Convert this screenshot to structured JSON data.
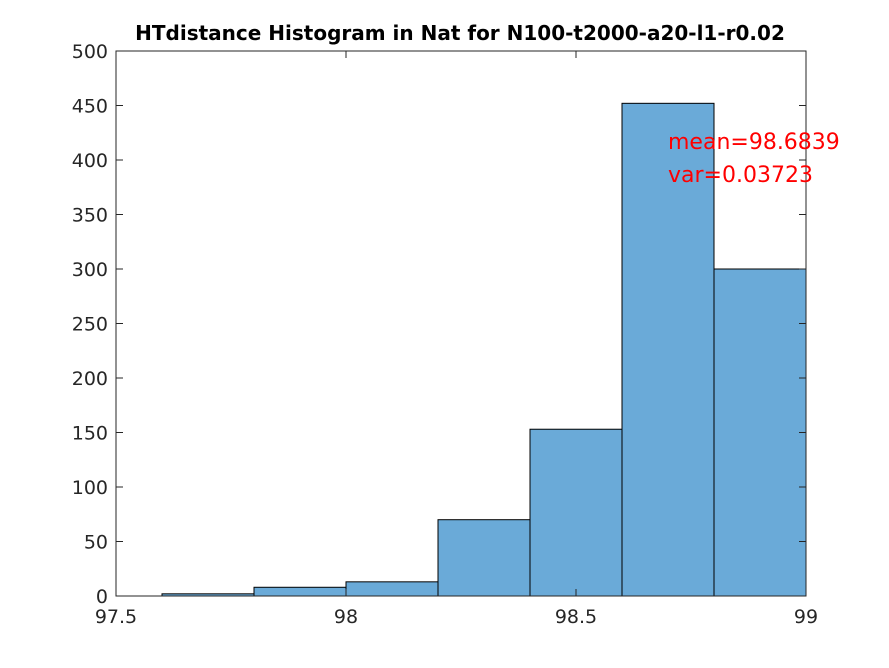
{
  "chart_data": {
    "type": "bar",
    "title": "HTdistance Histogram in Nat for N100-t2000-a20-l1-r0.02",
    "xlabel": "",
    "ylabel": "",
    "xlim": [
      97.5,
      99
    ],
    "ylim": [
      0,
      500
    ],
    "x_ticks": [
      "97.5",
      "98",
      "98.5",
      "99"
    ],
    "x_tick_values": [
      97.5,
      98,
      98.5,
      99
    ],
    "y_ticks": [
      "0",
      "50",
      "100",
      "150",
      "200",
      "250",
      "300",
      "350",
      "400",
      "450",
      "500"
    ],
    "y_tick_values": [
      0,
      50,
      100,
      150,
      200,
      250,
      300,
      350,
      400,
      450,
      500
    ],
    "bin_edges": [
      97.6,
      97.8,
      98.0,
      98.2,
      98.4,
      98.6,
      98.8,
      99.0
    ],
    "counts": [
      2,
      8,
      13,
      70,
      153,
      452,
      300
    ],
    "bar_color": "#6aaad8",
    "edge_color": "#000000",
    "grid": false,
    "annotations": [
      {
        "text": "mean=98.6839",
        "x": 98.7,
        "y": 410,
        "color": "#ff0000"
      },
      {
        "text": "var=0.03723",
        "x": 98.7,
        "y": 380,
        "color": "#ff0000"
      }
    ]
  }
}
